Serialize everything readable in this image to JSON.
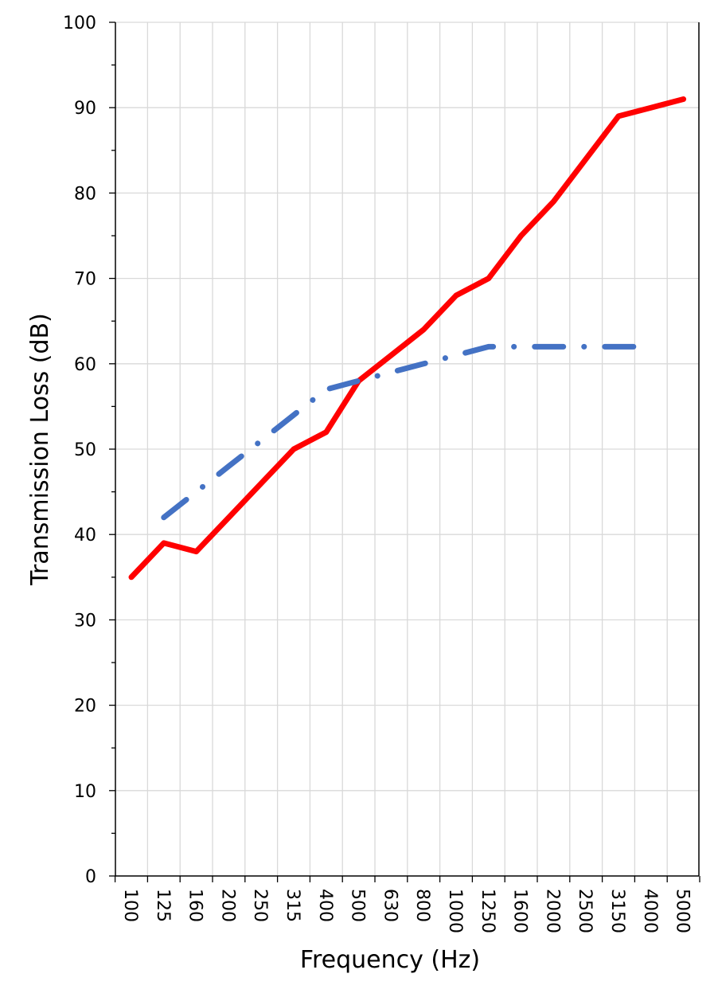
{
  "chart_data": {
    "type": "line",
    "title": "",
    "xlabel": "Frequency (Hz)",
    "ylabel": "Transmission Loss (dB)",
    "categories": [
      "100",
      "125",
      "160",
      "200",
      "250",
      "315",
      "400",
      "500",
      "630",
      "800",
      "1000",
      "1250",
      "1600",
      "2000",
      "2500",
      "3150",
      "4000",
      "5000"
    ],
    "ylim": [
      0,
      100
    ],
    "yticks": [
      0,
      10,
      20,
      30,
      40,
      50,
      60,
      70,
      80,
      90,
      100
    ],
    "grid": true,
    "legend": "none",
    "series": [
      {
        "color": "#ff0000",
        "style": "solid",
        "values": [
          35,
          39,
          38,
          42,
          46,
          50,
          52,
          58,
          61,
          64,
          68,
          70,
          75,
          79,
          84,
          89,
          90,
          91
        ]
      },
      {
        "color": "#4472c4",
        "style": "dash-dot",
        "values": [
          null,
          42,
          45,
          48,
          51,
          54,
          57,
          58,
          59,
          60,
          61,
          62,
          62,
          62,
          62,
          62,
          62,
          null
        ]
      }
    ]
  }
}
